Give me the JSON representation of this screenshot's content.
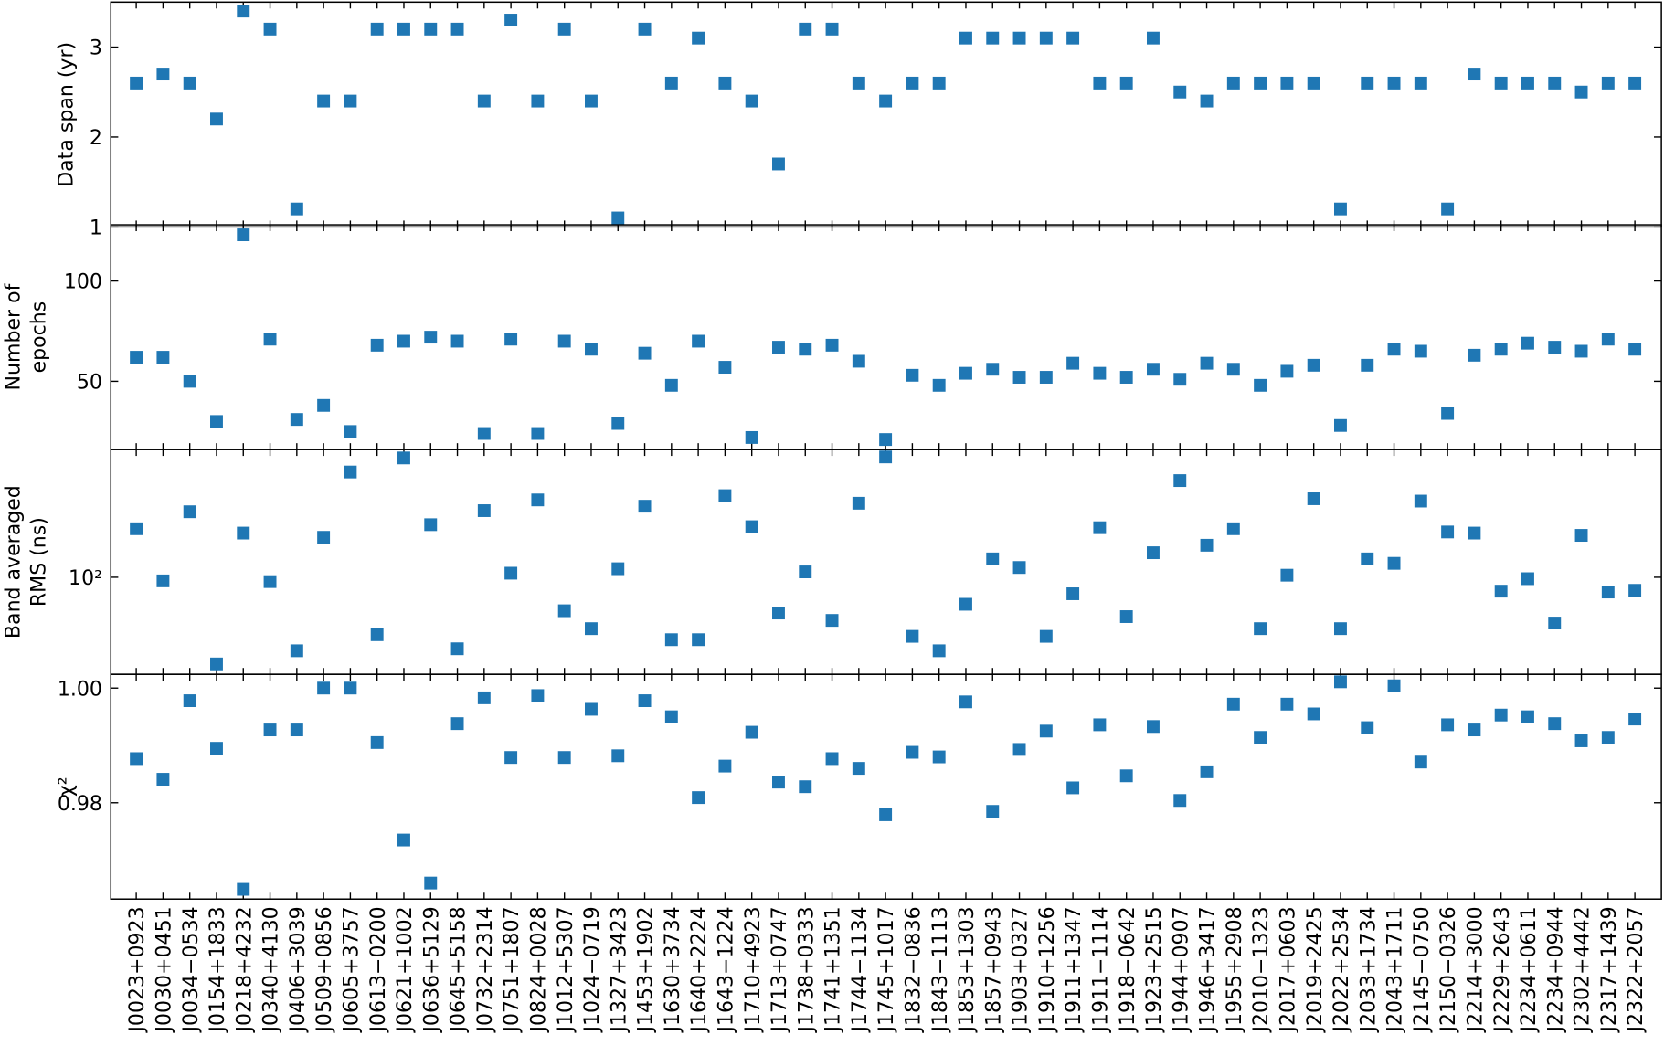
{
  "chart_data": [
    {
      "type": "scatter",
      "ylabel": [
        "Data span (yr)"
      ],
      "color": "#1f77b4",
      "ylim": [
        1,
        3.5
      ],
      "yticks": [
        1,
        2,
        3
      ],
      "values": [
        2.6,
        2.7,
        2.6,
        2.2,
        3.4,
        3.2,
        1.2,
        2.4,
        2.4,
        3.2,
        3.2,
        3.2,
        3.2,
        2.4,
        3.3,
        2.4,
        3.2,
        2.4,
        1.1,
        3.2,
        2.6,
        3.1,
        2.6,
        2.4,
        1.7,
        3.2,
        3.2,
        2.6,
        2.4,
        2.6,
        2.6,
        3.1,
        3.1,
        3.1,
        3.1,
        3.1,
        2.6,
        2.6,
        3.1,
        2.5,
        2.4,
        2.6,
        2.6,
        2.6,
        2.6,
        1.2,
        2.6,
        2.6,
        2.6,
        1.2,
        2.7,
        2.6,
        2.6,
        2.6,
        2.5,
        2.6,
        2.6
      ]
    },
    {
      "type": "scatter",
      "ylabel": [
        "Number of",
        "epochs"
      ],
      "color": "#1f77b4",
      "ylim": [
        16,
        128
      ],
      "yticks": [
        50,
        100
      ],
      "values": [
        62,
        62,
        50,
        30,
        123,
        71,
        31,
        38,
        25,
        68,
        70,
        72,
        70,
        24,
        71,
        24,
        70,
        66,
        29,
        64,
        48,
        70,
        57,
        22,
        67,
        66,
        68,
        60,
        21,
        53,
        48,
        54,
        56,
        52,
        52,
        59,
        54,
        52,
        56,
        51,
        59,
        56,
        48,
        55,
        58,
        28,
        58,
        66,
        65,
        34,
        63,
        66,
        69,
        67,
        65,
        71,
        66
      ]
    },
    {
      "type": "scatter",
      "ylabel": [
        "Band averaged",
        "RMS (ns)"
      ],
      "color": "#1f77b4",
      "log_scale": true,
      "ylim": [
        25,
        620
      ],
      "yticks": [
        {
          "value": 100,
          "label": "10²"
        }
      ],
      "values": [
        200,
        95,
        255,
        29,
        188,
        94,
        35,
        177,
        450,
        44,
        550,
        212,
        36,
        259,
        106,
        302,
        62,
        48,
        113,
        276,
        41,
        41,
        321,
        206,
        60,
        108,
        54,
        288,
        558,
        43,
        35,
        68,
        130,
        115,
        43,
        79,
        203,
        57,
        142,
        398,
        158,
        200,
        48,
        103,
        307,
        48,
        130,
        122,
        297,
        191,
        188,
        82,
        98,
        52,
        182,
        81,
        83
      ]
    },
    {
      "type": "scatter",
      "ylabel": [
        "χ²"
      ],
      "color": "#1f77b4",
      "ylim": [
        0.9632,
        1.0024
      ],
      "yticks": [
        0.98,
        {
          "value": 1,
          "label": "1.00"
        }
      ],
      "values": [
        0.9877,
        0.9841,
        0.9978,
        0.9895,
        0.9649,
        0.9927,
        0.9927,
        1.0,
        1.0,
        0.9905,
        0.9735,
        0.966,
        0.9938,
        0.9983,
        0.9879,
        0.9987,
        0.9879,
        0.9963,
        0.9882,
        0.9978,
        0.995,
        0.9809,
        0.9864,
        0.9923,
        0.9836,
        0.9828,
        0.9877,
        0.986,
        0.9779,
        0.9888,
        0.988,
        0.9976,
        0.9785,
        0.9893,
        0.9925,
        0.9826,
        0.9936,
        0.9847,
        0.9933,
        0.9804,
        0.9854,
        0.9972,
        0.9914,
        0.9972,
        0.9955,
        1.0011,
        0.9931,
        1.0004,
        0.9871,
        0.9936,
        0.9927,
        0.9953,
        0.995,
        0.9938,
        0.9908,
        0.9914,
        0.9946
      ],
      "categories": [
        "J0023+0923",
        "J0030+0451",
        "J0034−0534",
        "J0154+1833",
        "J0218+4232",
        "J0340+4130",
        "J0406+3039",
        "J0509+0856",
        "J0605+3757",
        "J0613−0200",
        "J0621+1002",
        "J0636+5129",
        "J0645+5158",
        "J0732+2314",
        "J0751+1807",
        "J0824+0028",
        "J1012+5307",
        "J1024−0719",
        "J1327+3423",
        "J1453+1902",
        "J1630+3734",
        "J1640+2224",
        "J1643−1224",
        "J1710+4923",
        "J1713+0747",
        "J1738+0333",
        "J1741+1351",
        "J1744−1134",
        "J1745+1017",
        "J1832−0836",
        "J1843−1113",
        "J1853+1303",
        "J1857+0943",
        "J1903+0327",
        "J1910+1256",
        "J1911+1347",
        "J1911−1114",
        "J1918−0642",
        "J1923+2515",
        "J1944+0907",
        "J1946+3417",
        "J1955+2908",
        "J2010−1323",
        "J2017+0603",
        "J2019+2425",
        "J2022+2534",
        "J2033+1734",
        "J2043+1711",
        "J2145−0750",
        "J2150−0326",
        "J2214+3000",
        "J2229+2643",
        "J2234+0611",
        "J2234+0944",
        "J2302+4442",
        "J2317+1439",
        "J2322+2057"
      ]
    }
  ]
}
